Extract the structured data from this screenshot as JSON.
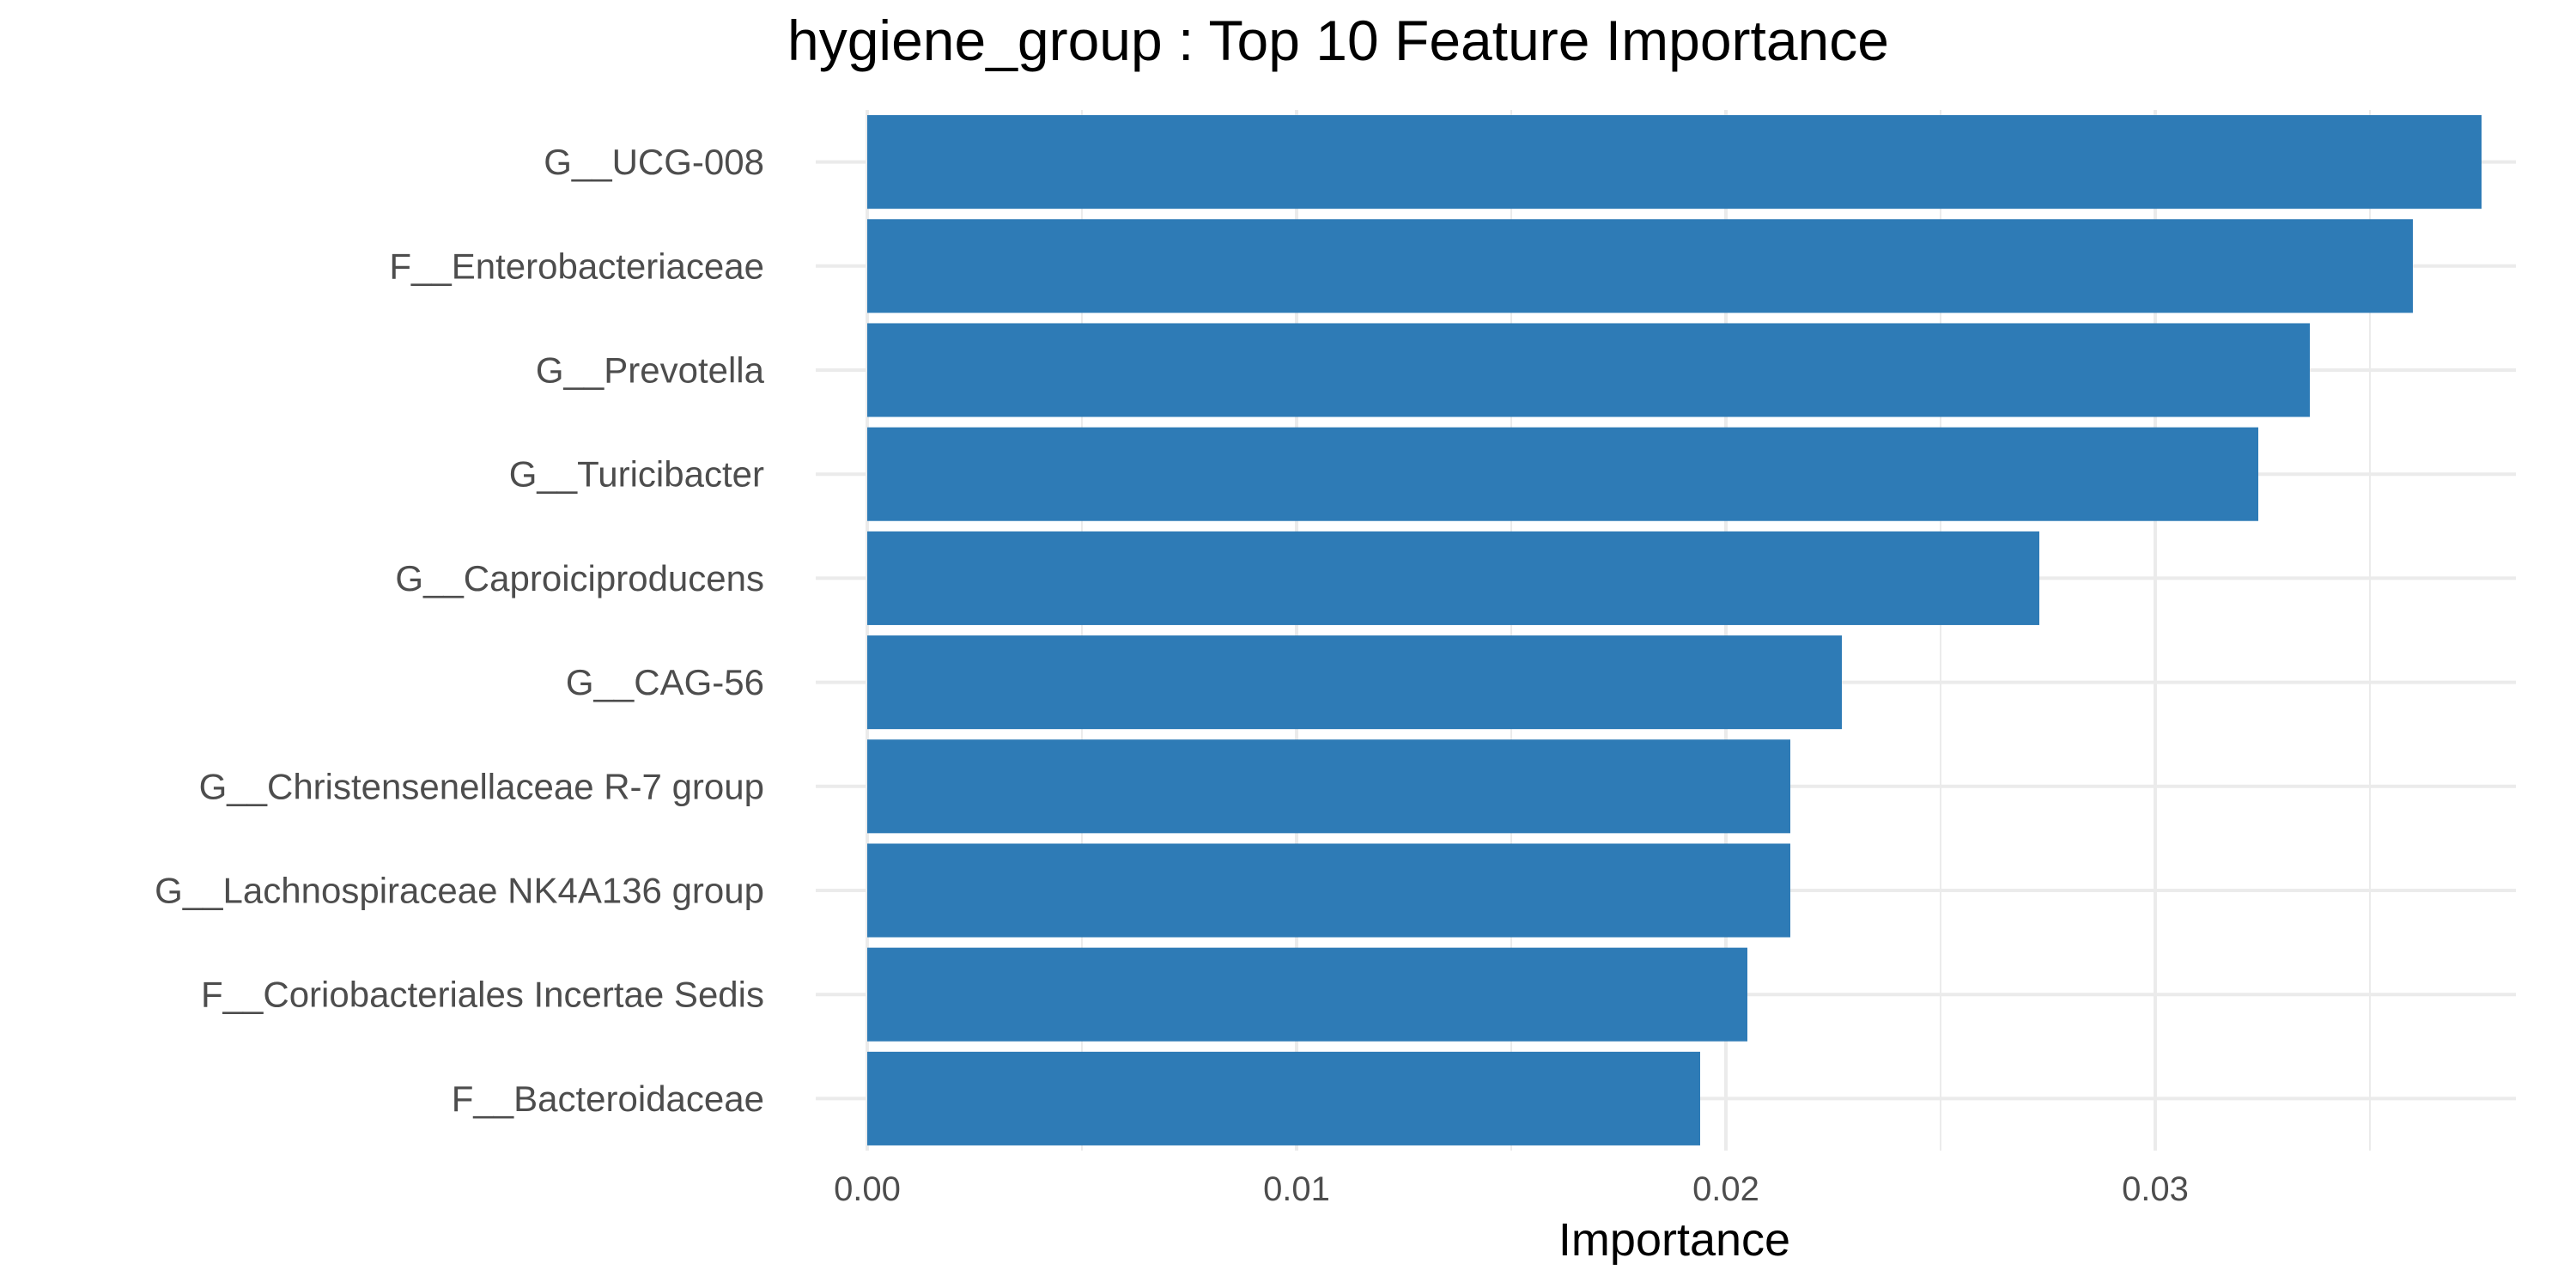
{
  "chart_data": {
    "type": "bar",
    "orientation": "horizontal",
    "title": "hygiene_group : Top 10 Feature Importance",
    "xlabel": "Importance",
    "ylabel": "",
    "xlim": [
      0,
      0.0385
    ],
    "x_ticks": [
      "0.00",
      "0.01",
      "0.02",
      "0.03"
    ],
    "x_tick_values": [
      0,
      0.01,
      0.02,
      0.03
    ],
    "grid": true,
    "legend": "none",
    "bar_color": "#2E7BB6",
    "categories": [
      "G__UCG-008",
      "F__Enterobacteriaceae",
      "G__Prevotella",
      "G__Turicibacter",
      "G__Caproiciproducens",
      "G__CAG-56",
      "G__Christensenellaceae R-7 group",
      "G__Lachnospiraceae NK4A136 group",
      "F__Coriobacteriales Incertae Sedis",
      "F__Bacteroidaceae"
    ],
    "values": [
      0.0376,
      0.036,
      0.0336,
      0.0324,
      0.0273,
      0.0227,
      0.0215,
      0.0215,
      0.0205,
      0.0194
    ]
  }
}
